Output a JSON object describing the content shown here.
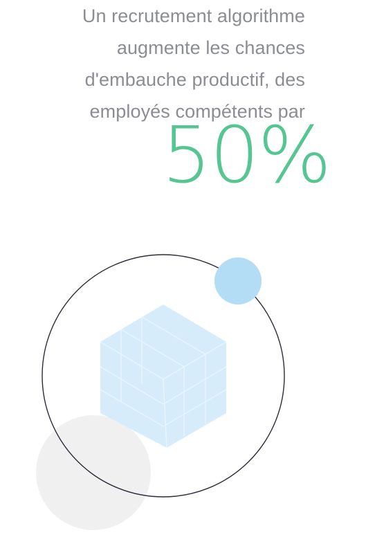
{
  "headline": {
    "lines": [
      "Un recrutement algorithme",
      "augmente les chances",
      "d'embauche productif, des",
      "employés compétents par"
    ]
  },
  "stat": {
    "value": "50%"
  },
  "colors": {
    "text_gray": "#8b8d93",
    "accent_green": "#55c591",
    "orbit_stroke": "#2b2b3a",
    "light_blue": "#b3ddf5",
    "pale_blue": "#d6ecfa",
    "light_gray": "#f0f0f1"
  },
  "illustration": {
    "icons": [
      "orbit-ring",
      "hexagon",
      "blue-dot",
      "gray-dot"
    ]
  }
}
